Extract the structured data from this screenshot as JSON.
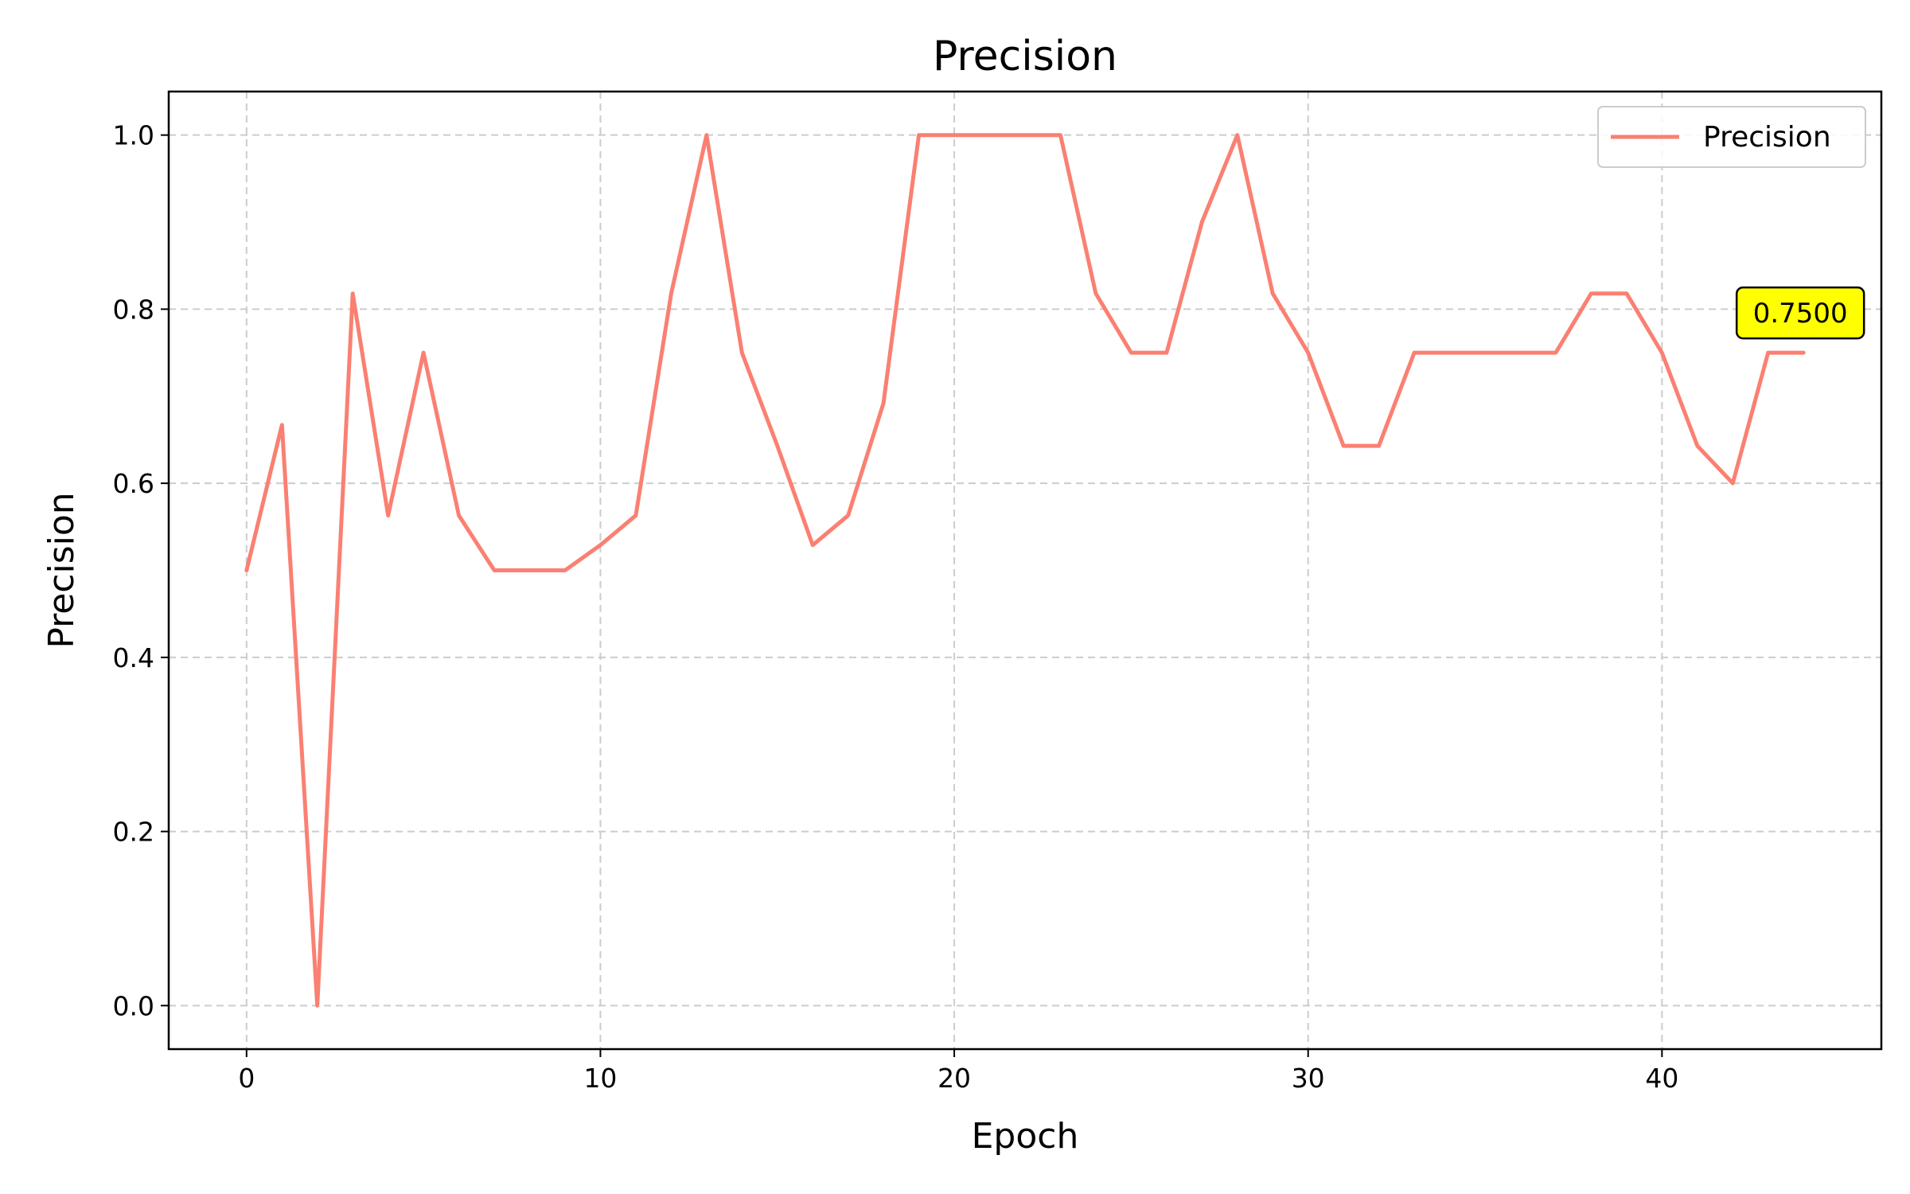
{
  "chart_data": {
    "type": "line",
    "title": "Precision",
    "xlabel": "Epoch",
    "ylabel": "Precision",
    "xlim": [
      -2.2,
      46.2
    ],
    "ylim": [
      -0.05,
      1.05
    ],
    "xticks": [
      0,
      10,
      20,
      30,
      40
    ],
    "yticks": [
      0.0,
      0.2,
      0.4,
      0.6,
      0.8,
      1.0
    ],
    "grid": true,
    "legend_placement": "top-right",
    "series": [
      {
        "name": "Precision",
        "color": "#fa8072",
        "x": [
          0,
          1,
          2,
          3,
          4,
          5,
          6,
          7,
          8,
          9,
          10,
          11,
          12,
          13,
          14,
          15,
          16,
          17,
          18,
          19,
          20,
          21,
          22,
          23,
          24,
          25,
          26,
          27,
          28,
          29,
          30,
          31,
          32,
          33,
          34,
          35,
          36,
          37,
          38,
          39,
          40,
          41,
          42,
          43,
          44
        ],
        "y": [
          0.5,
          0.667,
          0.0,
          0.818,
          0.563,
          0.75,
          0.563,
          0.5,
          0.5,
          0.5,
          0.529,
          0.563,
          0.818,
          1.0,
          0.75,
          0.643,
          0.529,
          0.563,
          0.692,
          1.0,
          1.0,
          1.0,
          1.0,
          1.0,
          0.818,
          0.75,
          0.75,
          0.9,
          1.0,
          0.818,
          0.75,
          0.643,
          0.643,
          0.75,
          0.75,
          0.75,
          0.75,
          0.75,
          0.818,
          0.818,
          0.75,
          0.643,
          0.6,
          0.75,
          0.75
        ]
      }
    ],
    "annotation": {
      "text": "0.7500",
      "x": 44,
      "y": 0.75,
      "background": "#ffff00"
    }
  }
}
